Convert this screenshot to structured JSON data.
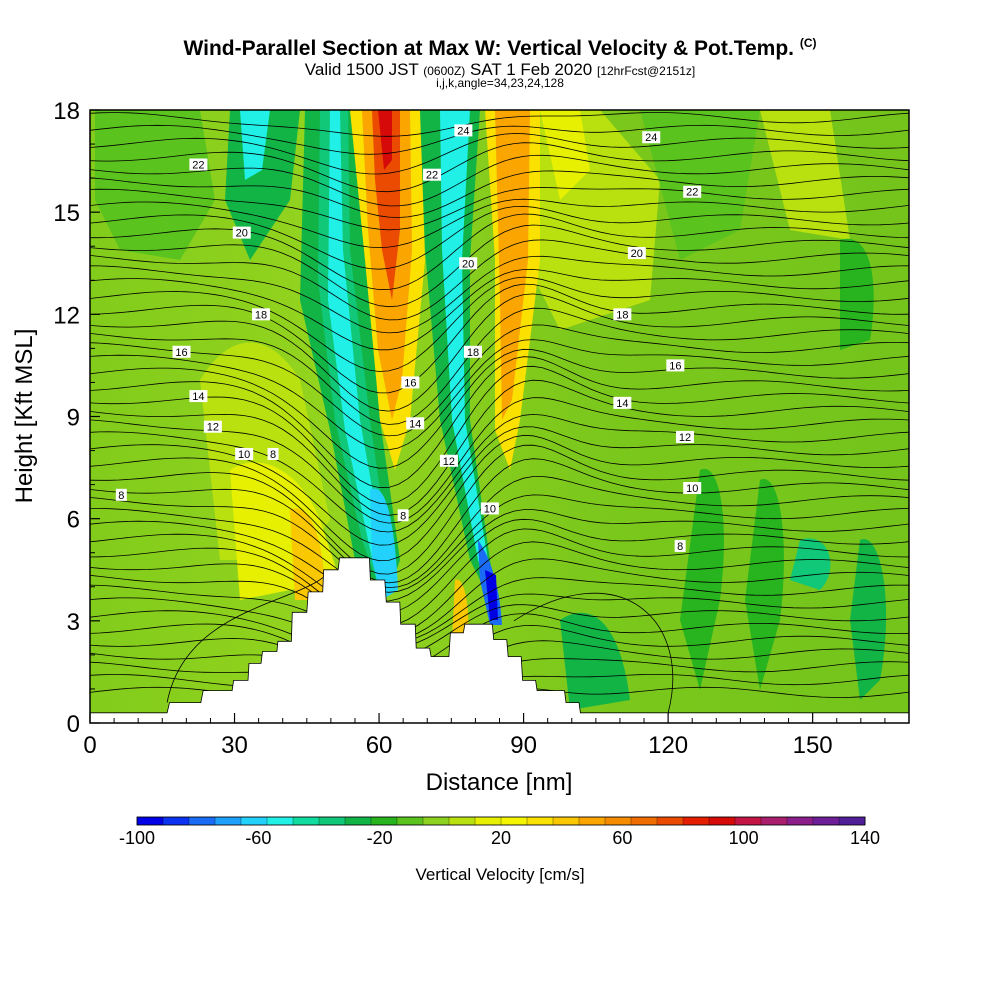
{
  "header": {
    "title": "Wind-Parallel Section at Max W: Vertical Velocity & Pot.Temp.",
    "copyright_tag": "(C)",
    "valid_prefix": "Valid 1500 JST",
    "valid_utc": "(0600Z)",
    "valid_date": "SAT 1 Feb 2020",
    "forecast_info": "[12hrFcst@2151z]",
    "section_info": "i,j,k,angle=34,23,24,128"
  },
  "chart_data": {
    "type": "heatmap",
    "title": "Wind-Parallel Section at Max W: Vertical Velocity & Pot.Temp.",
    "xlabel": "Distance [nm]",
    "ylabel": "Height [Kft MSL]",
    "xlim": [
      0,
      170
    ],
    "ylim": [
      0,
      18
    ],
    "x_ticks": [
      0,
      30,
      60,
      90,
      120,
      150
    ],
    "y_ticks": [
      0,
      3,
      6,
      9,
      12,
      15,
      18
    ],
    "colorbar": {
      "label": "Vertical Velocity [cm/s]",
      "range": [
        -100,
        140
      ],
      "tick_labels": [
        "-100",
        "-60",
        "-20",
        "20",
        "60",
        "100",
        "140"
      ],
      "colors": [
        "#0000e6",
        "#0a32f0",
        "#1a6cf5",
        "#1fa0fa",
        "#22d2fa",
        "#20f0e6",
        "#10dca0",
        "#10c878",
        "#12b446",
        "#28b41e",
        "#5ac31e",
        "#8cd21e",
        "#b9e10f",
        "#e6f000",
        "#f5f500",
        "#fae100",
        "#fac800",
        "#faa500",
        "#f58c00",
        "#f06e00",
        "#eb4b00",
        "#e61e00",
        "#d70a0a",
        "#c31446",
        "#aa1e6e",
        "#8c1e8c",
        "#6e1e96",
        "#501e96"
      ]
    },
    "terrain_profile": [
      {
        "x": 0,
        "y": 0.3
      },
      {
        "x": 16,
        "y": 0.3
      },
      {
        "x": 16.5,
        "y": 0.6
      },
      {
        "x": 23,
        "y": 0.6
      },
      {
        "x": 23.5,
        "y": 0.95
      },
      {
        "x": 29.5,
        "y": 0.95
      },
      {
        "x": 29.8,
        "y": 1.25
      },
      {
        "x": 32.8,
        "y": 1.25
      },
      {
        "x": 33,
        "y": 1.75
      },
      {
        "x": 35.5,
        "y": 1.75
      },
      {
        "x": 35.8,
        "y": 2.1
      },
      {
        "x": 38.8,
        "y": 2.1
      },
      {
        "x": 39,
        "y": 2.4
      },
      {
        "x": 41.8,
        "y": 2.4
      },
      {
        "x": 42,
        "y": 3.25
      },
      {
        "x": 45,
        "y": 3.25
      },
      {
        "x": 45.3,
        "y": 3.85
      },
      {
        "x": 48.3,
        "y": 3.85
      },
      {
        "x": 48.5,
        "y": 4.5
      },
      {
        "x": 51.5,
        "y": 4.5
      },
      {
        "x": 51.8,
        "y": 4.85
      },
      {
        "x": 58,
        "y": 4.85
      },
      {
        "x": 58.2,
        "y": 4.2
      },
      {
        "x": 61.2,
        "y": 4.2
      },
      {
        "x": 61.5,
        "y": 3.55
      },
      {
        "x": 64.3,
        "y": 3.55
      },
      {
        "x": 64.5,
        "y": 2.9
      },
      {
        "x": 67.5,
        "y": 2.9
      },
      {
        "x": 67.7,
        "y": 2.2
      },
      {
        "x": 70.5,
        "y": 2.2
      },
      {
        "x": 70.8,
        "y": 1.95
      },
      {
        "x": 74.5,
        "y": 1.95
      },
      {
        "x": 74.8,
        "y": 2.65
      },
      {
        "x": 77.5,
        "y": 2.65
      },
      {
        "x": 77.8,
        "y": 2.9
      },
      {
        "x": 83.5,
        "y": 2.9
      },
      {
        "x": 83.8,
        "y": 2.45
      },
      {
        "x": 86.5,
        "y": 2.45
      },
      {
        "x": 86.8,
        "y": 1.95
      },
      {
        "x": 89.5,
        "y": 1.95
      },
      {
        "x": 89.8,
        "y": 1.25
      },
      {
        "x": 92.5,
        "y": 1.25
      },
      {
        "x": 92.8,
        "y": 0.95
      },
      {
        "x": 98.5,
        "y": 0.95
      },
      {
        "x": 98.8,
        "y": 0.6
      },
      {
        "x": 101.5,
        "y": 0.6
      },
      {
        "x": 101.8,
        "y": 0.3
      },
      {
        "x": 170,
        "y": 0.3
      }
    ],
    "isentrope_labels": [
      {
        "text": "22",
        "x": 22.5,
        "y": 16.4
      },
      {
        "text": "20",
        "x": 31.5,
        "y": 14.4
      },
      {
        "text": "18",
        "x": 35.5,
        "y": 12.0
      },
      {
        "text": "16",
        "x": 19,
        "y": 10.9
      },
      {
        "text": "14",
        "x": 22.5,
        "y": 9.6
      },
      {
        "text": "12",
        "x": 25.5,
        "y": 8.7
      },
      {
        "text": "10",
        "x": 32,
        "y": 7.9
      },
      {
        "text": "8",
        "x": 38,
        "y": 7.9
      },
      {
        "text": "8",
        "x": 6.5,
        "y": 6.7
      },
      {
        "text": "24",
        "x": 77.5,
        "y": 17.4
      },
      {
        "text": "22",
        "x": 71,
        "y": 16.1
      },
      {
        "text": "20",
        "x": 78.5,
        "y": 13.5
      },
      {
        "text": "18",
        "x": 79.5,
        "y": 10.9
      },
      {
        "text": "16",
        "x": 66.5,
        "y": 10.0
      },
      {
        "text": "14",
        "x": 67.5,
        "y": 8.8
      },
      {
        "text": "12",
        "x": 74.5,
        "y": 7.7
      },
      {
        "text": "10",
        "x": 83,
        "y": 6.3
      },
      {
        "text": "8",
        "x": 65,
        "y": 6.1
      },
      {
        "text": "24",
        "x": 116.5,
        "y": 17.2
      },
      {
        "text": "22",
        "x": 125,
        "y": 15.6
      },
      {
        "text": "20",
        "x": 113.5,
        "y": 13.8
      },
      {
        "text": "18",
        "x": 110.5,
        "y": 12.0
      },
      {
        "text": "16",
        "x": 121.5,
        "y": 10.5
      },
      {
        "text": "14",
        "x": 110.5,
        "y": 9.4
      },
      {
        "text": "12",
        "x": 123.5,
        "y": 8.4
      },
      {
        "text": "10",
        "x": 125,
        "y": 6.9
      },
      {
        "text": "8",
        "x": 122.5,
        "y": 5.2
      }
    ]
  }
}
